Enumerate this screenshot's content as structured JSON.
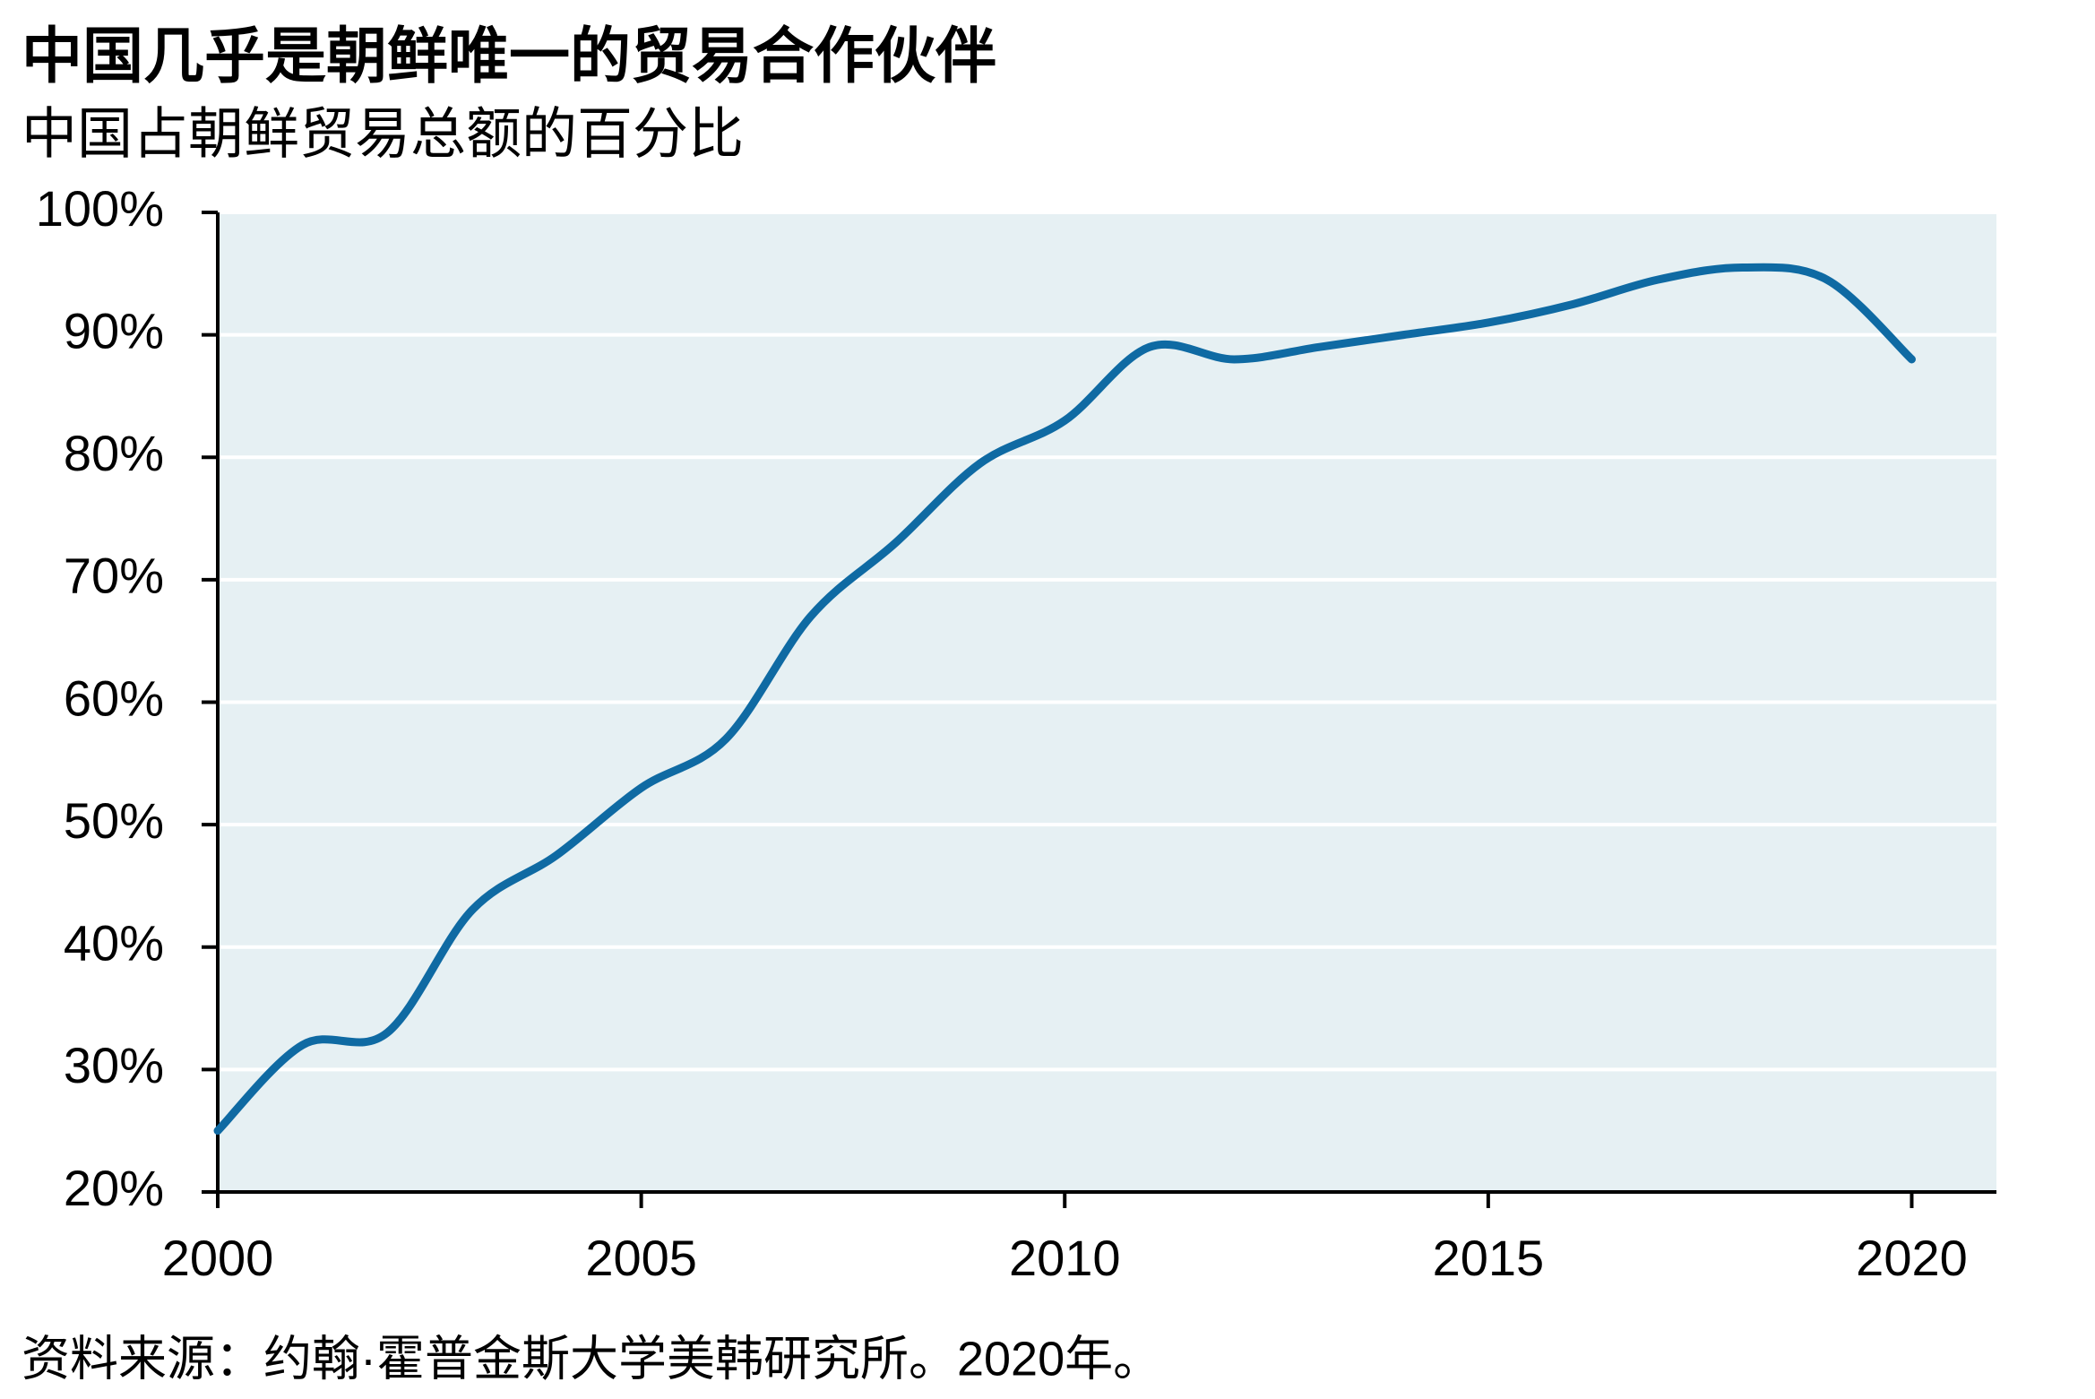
{
  "chart_data": {
    "type": "line",
    "title": "中国几乎是朝鲜唯一的贸易合作伙伴",
    "subtitle": "中国占朝鲜贸易总额的百分比",
    "source": "资料来源：约翰·霍普金斯大学美韩研究所。2020年。",
    "x": [
      2000,
      2001,
      2002,
      2003,
      2004,
      2005,
      2006,
      2007,
      2008,
      2009,
      2010,
      2011,
      2012,
      2013,
      2014,
      2015,
      2016,
      2017,
      2018,
      2019,
      2020
    ],
    "values": [
      25,
      32,
      33,
      43,
      47.5,
      53,
      57,
      67,
      73,
      79.5,
      83,
      89,
      88,
      89,
      90,
      91,
      92.5,
      94.5,
      95.5,
      94.5,
      88
    ],
    "color": "#0f6aa3",
    "xlim": [
      2000,
      2021
    ],
    "xticks": [
      2000,
      2005,
      2010,
      2015,
      2020
    ],
    "ylim": [
      20,
      100
    ],
    "yticks": [
      {
        "value": 20,
        "label": "20%"
      },
      {
        "value": 30,
        "label": "30%"
      },
      {
        "value": 40,
        "label": "40%"
      },
      {
        "value": 50,
        "label": "50%"
      },
      {
        "value": 60,
        "label": "60%"
      },
      {
        "value": 70,
        "label": "70%"
      },
      {
        "value": 80,
        "label": "80%"
      },
      {
        "value": 90,
        "label": "90%"
      },
      {
        "value": 100,
        "label": "100%"
      }
    ],
    "grid": true
  }
}
